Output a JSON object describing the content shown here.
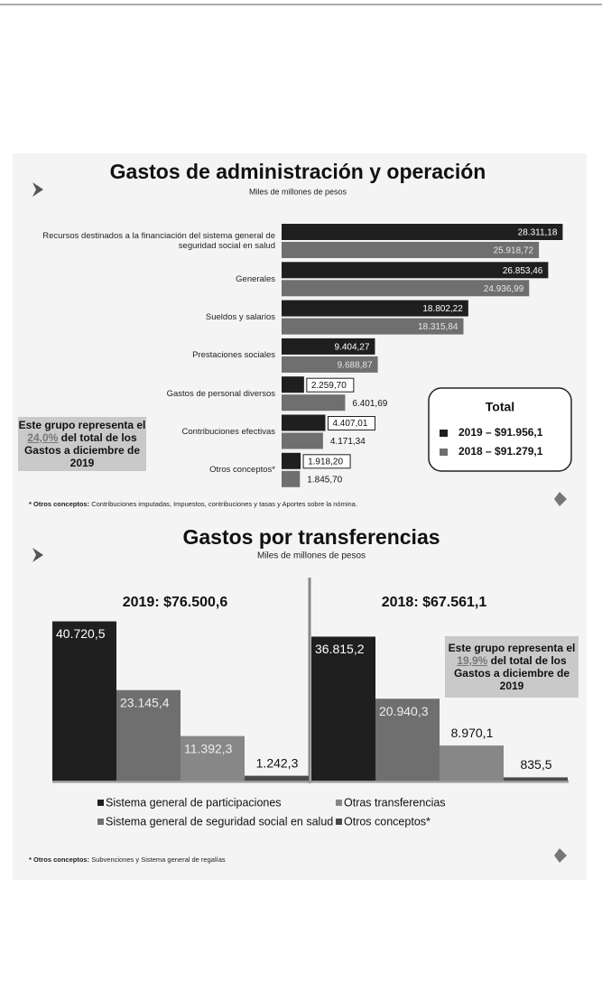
{
  "chart_data": [
    {
      "type": "barh",
      "title": "Gastos de administración y operación",
      "subtitle": "Miles de millones de pesos",
      "categories": [
        "Recursos destinados a la financiación del sistema general de seguridad social en salud",
        "Generales",
        "Sueldos y salarios",
        "Prestaciones sociales",
        "Gastos de personal diversos",
        "Contribuciones efectivas",
        "Otros conceptos*"
      ],
      "series": [
        {
          "name": "2019 – $91.956,1",
          "color": "#1f1f1f",
          "values": [
            28311.18,
            26853.46,
            18802.22,
            9404.27,
            2259.7,
            4407.01,
            1918.2
          ],
          "value_labels": [
            "28.311,18",
            "26.853,46",
            "18.802,22",
            "9.404,27",
            "2.259,70",
            "4.407,01",
            "1.918,20"
          ]
        },
        {
          "name": "2018 – $91.279,1",
          "color": "#6f6f6f",
          "values": [
            25918.72,
            24936.99,
            18315.84,
            9688.87,
            6401.69,
            4171.34,
            1845.7
          ],
          "value_labels": [
            "25.918,72",
            "24.936,99",
            "18.315,84",
            "9.688,87",
            "6.401,69",
            "4.171,34",
            "1.845,70"
          ]
        }
      ],
      "xlim": [
        0,
        30000
      ],
      "legend_title": "Total",
      "annotation": {
        "before": "Este grupo representa el",
        "highlight": "24,0%",
        "after": "del total de los Gastos a diciembre de 2019"
      },
      "footnote": {
        "label": "* Otros conceptos:",
        "text": "Contribuciones imputadas, Impuestos, contribuciones y tasas y Aportes sobre la nómina."
      }
    },
    {
      "type": "bar",
      "title": "Gastos por transferencias",
      "subtitle": "Miles de millones de pesos",
      "categories": [
        "Sistema general de participaciones",
        "Sistema general de seguridad social en salud",
        "Otras transferencias",
        "Otros conceptos*"
      ],
      "colors": [
        "#1f1f1f",
        "#6f6f6f",
        "#878787",
        "#4a4a4a"
      ],
      "series": [
        {
          "name": "2019: $76.500,6",
          "values": [
            40720.5,
            23145.4,
            11392.3,
            1242.3
          ],
          "value_labels": [
            "40.720,5",
            "23.145,4",
            "11.392,3",
            "1.242,3"
          ]
        },
        {
          "name": "2018: $67.561,1",
          "values": [
            36815.2,
            20940.3,
            8970.1,
            835.5
          ],
          "value_labels": [
            "36.815,2",
            "20.940,3",
            "8.970,1",
            "835,5"
          ]
        }
      ],
      "ylim": [
        0,
        45000
      ],
      "annotation": {
        "before": "Este grupo representa el",
        "highlight": "19,9%",
        "after": "del total de los Gastos a diciembre de 2019"
      },
      "footnote": {
        "label": "* Otros conceptos:",
        "text": "Subvenciones y Sistema general de regalías"
      }
    }
  ]
}
